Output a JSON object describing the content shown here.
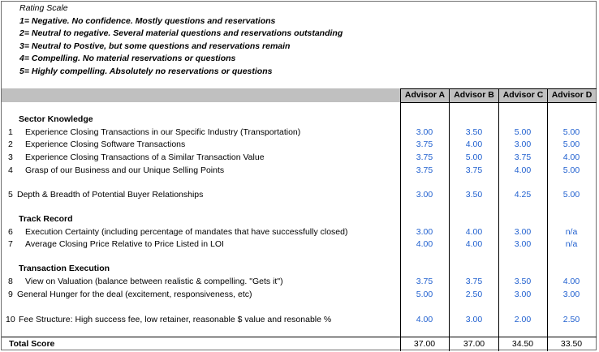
{
  "rating_scale": {
    "title": "Rating Scale",
    "items": [
      "1= Negative. No confidence. Mostly questions and reservations",
      "2= Neutral to negative. Several material questions and reservations outstanding",
      "3= Neutral to Postive, but some questions and reservations remain",
      "4= Compelling. No material reservations or questions",
      "5= Highly compelling. Absolutely no reservations or questions"
    ]
  },
  "columns": [
    "Advisor A",
    "Advisor B",
    "Advisor C",
    "Advisor D"
  ],
  "sections": {
    "sector": "Sector Knowledge",
    "track": "Track Record",
    "transaction": "Transaction Execution"
  },
  "rows": [
    {
      "num": "1",
      "label": "Experience Closing Transactions in our Specific Industry (Transportation)",
      "values": [
        "3.00",
        "3.50",
        "5.00",
        "5.00"
      ]
    },
    {
      "num": "2",
      "label": "Experience Closing Software Transactions",
      "values": [
        "3.75",
        "4.00",
        "3.00",
        "5.00"
      ]
    },
    {
      "num": "3",
      "label": "Experience Closing Transactions of a Similar Transaction Value",
      "values": [
        "3.75",
        "5.00",
        "3.75",
        "4.00"
      ]
    },
    {
      "num": "4",
      "label": "Grasp of our Business and our Unique Selling Points",
      "values": [
        "3.75",
        "3.75",
        "4.00",
        "5.00"
      ]
    },
    {
      "num": "5",
      "label": "Depth & Breadth of Potential Buyer Relationships",
      "values": [
        "3.00",
        "3.50",
        "4.25",
        "5.00"
      ]
    },
    {
      "num": "6",
      "label": "Execution Certainty (including percentage of mandates that have successfully closed)",
      "values": [
        "3.00",
        "4.00",
        "3.00",
        "n/a"
      ]
    },
    {
      "num": "7",
      "label": "Average Closing Price Relative to Price Listed in LOI",
      "values": [
        "4.00",
        "4.00",
        "3.00",
        "n/a"
      ]
    },
    {
      "num": "8",
      "label": "View on Valuation (balance between realistic & compelling. \"Gets it\")",
      "values": [
        "3.75",
        "3.75",
        "3.50",
        "4.00"
      ]
    },
    {
      "num": "9",
      "label": "General Hunger for the deal (excitement, responsiveness, etc)",
      "values": [
        "5.00",
        "2.50",
        "3.00",
        "3.00"
      ]
    },
    {
      "num": "10",
      "label": "Fee Structure: High success fee, low retainer, reasonable $ value and resonable %",
      "values": [
        "4.00",
        "3.00",
        "2.00",
        "2.50"
      ]
    }
  ],
  "total": {
    "label": "Total Score",
    "values": [
      "37.00",
      "37.00",
      "34.50",
      "33.50"
    ]
  }
}
